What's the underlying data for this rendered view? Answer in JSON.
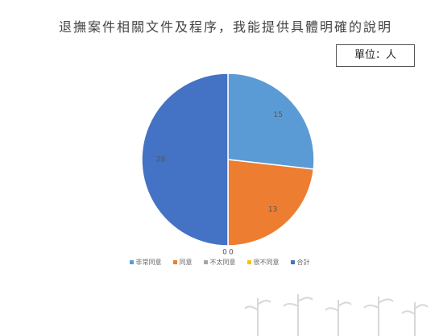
{
  "chart_data": {
    "type": "pie",
    "title": "退撫案件相關文件及程序，我能提供具體明確的說明",
    "unit_label": "單位：人",
    "categories": [
      "非常同意",
      "同意",
      "不太同意",
      "很不同意",
      "合計"
    ],
    "values": [
      15,
      13,
      0,
      0,
      28
    ],
    "colors": [
      "#5b9bd5",
      "#ed7d31",
      "#a5a5a5",
      "#ffc000",
      "#4472c4"
    ]
  }
}
